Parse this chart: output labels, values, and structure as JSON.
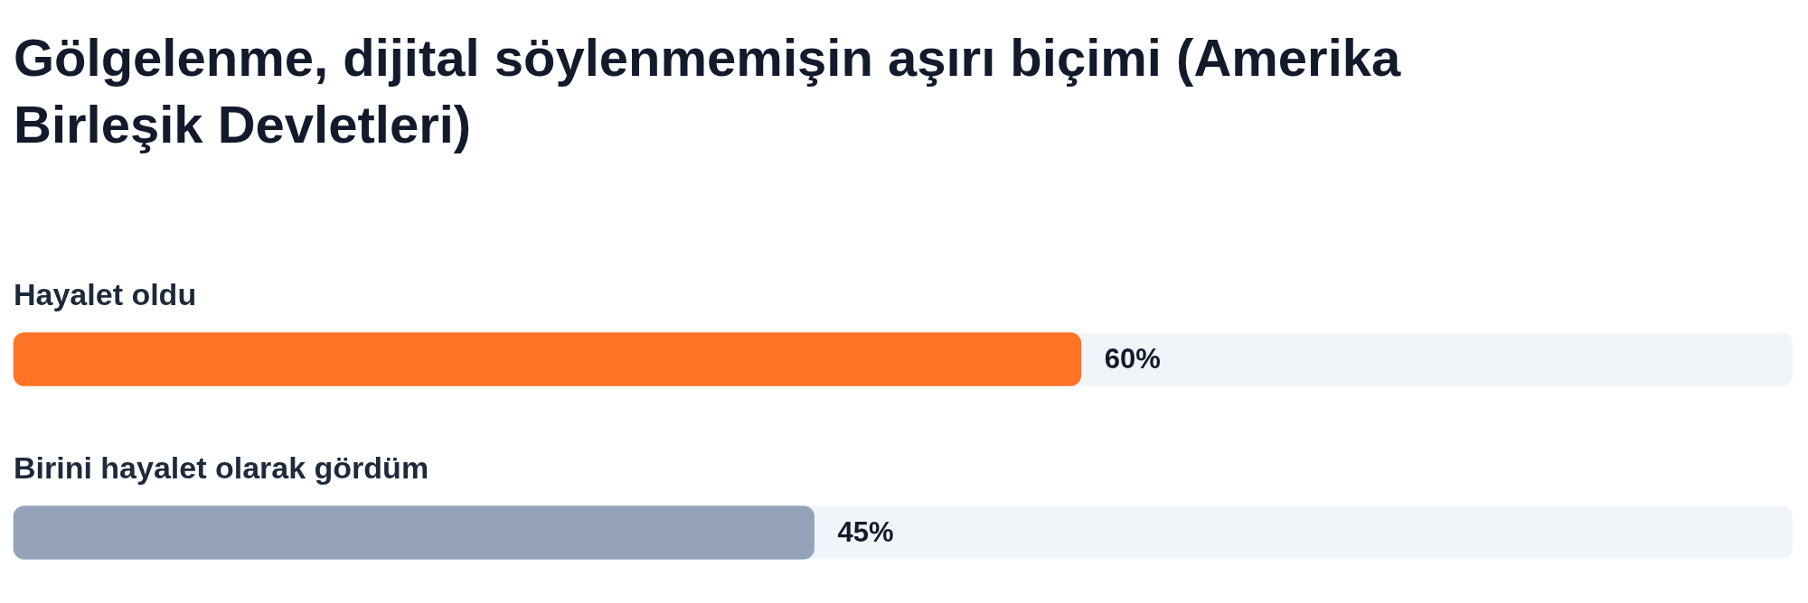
{
  "chart_data": {
    "type": "bar",
    "orientation": "horizontal",
    "title": "Gölgelenme, dijital söylenmemişin aşırı biçimi (Amerika Birleşik Devletleri)",
    "categories": [
      "Hayalet oldu",
      "Birini hayalet olarak gördüm"
    ],
    "values": [
      60,
      45
    ],
    "colors": [
      "#ff7426",
      "#94a3b8"
    ],
    "value_labels": [
      "60%",
      "45%"
    ],
    "xlim": [
      0,
      100
    ],
    "tick_labels": "y"
  }
}
